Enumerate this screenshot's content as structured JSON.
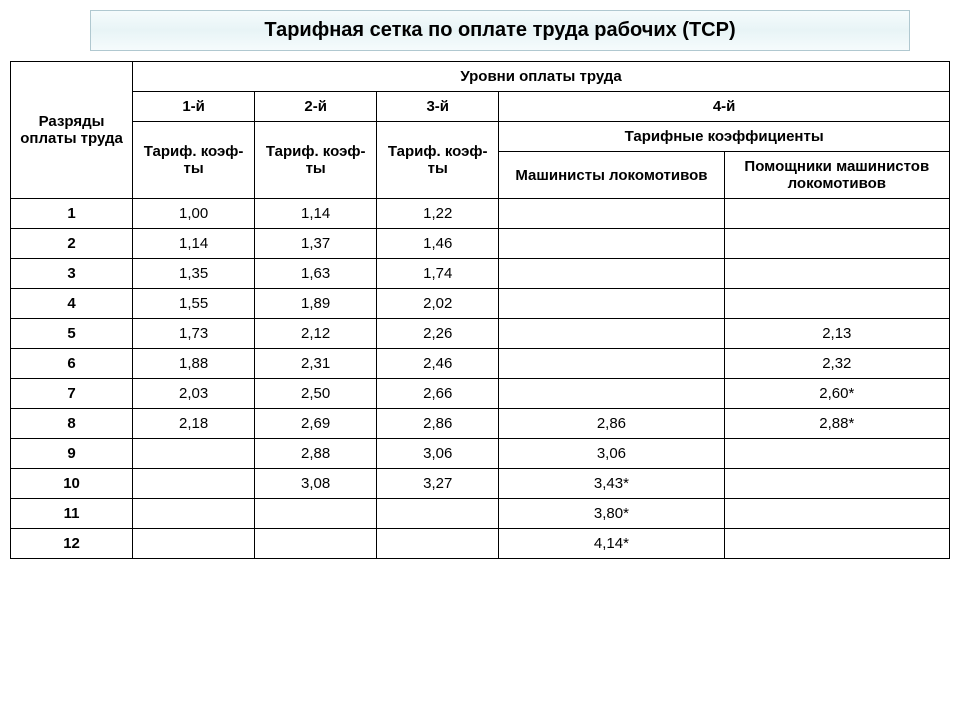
{
  "title": "Тарифная сетка по оплате труда рабочих (ТСР)",
  "headers": {
    "row_head": "Разряды оплаты труда",
    "levels": "Уровни оплаты труда",
    "l1": "1-й",
    "l2": "2-й",
    "l3": "3-й",
    "l4": "4-й",
    "tk": "Тариф. коэф-ты",
    "tk_full": "Тарифные коэффициенты",
    "mach": "Машинисты локомотивов",
    "assist": "Помощники машинистов локомотивов"
  },
  "rows": [
    {
      "r": "1",
      "c1": "1,00",
      "c2": "1,14",
      "c3": "1,22",
      "c4": "",
      "c5": ""
    },
    {
      "r": "2",
      "c1": "1,14",
      "c2": "1,37",
      "c3": "1,46",
      "c4": "",
      "c5": ""
    },
    {
      "r": "3",
      "c1": "1,35",
      "c2": "1,63",
      "c3": "1,74",
      "c4": "",
      "c5": ""
    },
    {
      "r": "4",
      "c1": "1,55",
      "c2": "1,89",
      "c3": "2,02",
      "c4": "",
      "c5": ""
    },
    {
      "r": "5",
      "c1": "1,73",
      "c2": "2,12",
      "c3": "2,26",
      "c4": "",
      "c5": "2,13"
    },
    {
      "r": "6",
      "c1": "1,88",
      "c2": "2,31",
      "c3": "2,46",
      "c4": "",
      "c5": "2,32"
    },
    {
      "r": "7",
      "c1": "2,03",
      "c2": "2,50",
      "c3": "2,66",
      "c4": "",
      "c5": "2,60*"
    },
    {
      "r": "8",
      "c1": "2,18",
      "c2": "2,69",
      "c3": "2,86",
      "c4": "2,86",
      "c5": "2,88*"
    },
    {
      "r": "9",
      "c1": "",
      "c2": "2,88",
      "c3": "3,06",
      "c4": "3,06",
      "c5": ""
    },
    {
      "r": "10",
      "c1": "",
      "c2": "3,08",
      "c3": "3,27",
      "c4": "3,43*",
      "c5": ""
    },
    {
      "r": "11",
      "c1": "",
      "c2": "",
      "c3": "",
      "c4": "3,80*",
      "c5": ""
    },
    {
      "r": "12",
      "c1": "",
      "c2": "",
      "c3": "",
      "c4": "4,14*",
      "c5": ""
    }
  ],
  "style": {
    "title_bg_top": "#f5fbfc",
    "title_bg_mid": "#e8f4f6",
    "title_border": "#b0c8d0",
    "cell_border": "#000000",
    "background": "#ffffff",
    "font_body": 15,
    "font_title": 20
  }
}
